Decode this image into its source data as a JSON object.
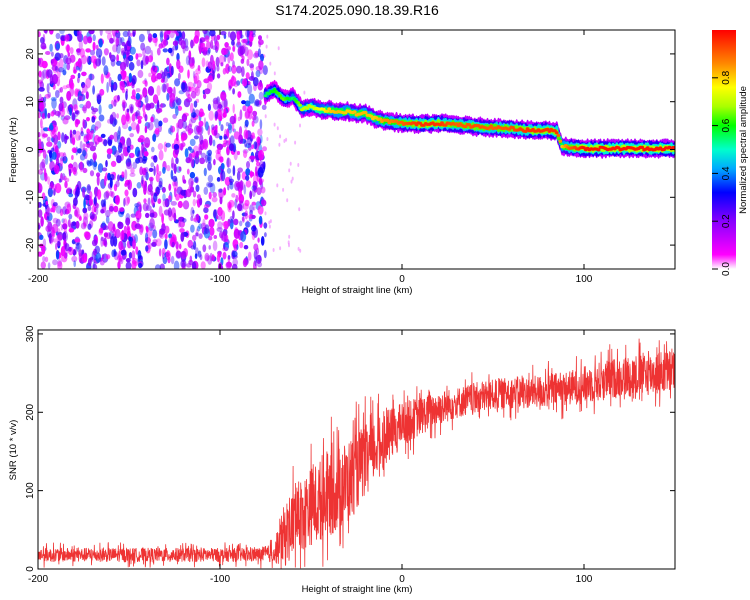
{
  "title": "S174.2025.090.18.39.R16",
  "chart_data": [
    {
      "type": "heatmap",
      "xlabel": "Height of straight line (km)",
      "ylabel": "Frequency (Hz)",
      "xlim": [
        -200,
        150
      ],
      "ylim": [
        -25,
        25
      ],
      "x_ticks": [
        "-200",
        "-100",
        "0",
        "100"
      ],
      "x_tick_values": [
        -200,
        -100,
        0,
        100
      ],
      "y_ticks": [
        "20",
        "10",
        "0",
        "-10",
        "-20"
      ],
      "y_tick_values": [
        20,
        10,
        0,
        -10,
        -20
      ],
      "colorbar": {
        "label": "Normalized spectral amplitude",
        "range": [
          0,
          1
        ],
        "ticks": [
          "0.0",
          "0.2",
          "0.4",
          "0.6",
          "0.8"
        ],
        "tick_values": [
          0.0,
          0.2,
          0.4,
          0.6,
          0.8
        ],
        "colors": [
          "#ffffff",
          "#ff00ff",
          "#8800ff",
          "#0000ff",
          "#00aaff",
          "#00ffcc",
          "#00ff00",
          "#aaff00",
          "#ffff00",
          "#ff8800",
          "#ff0000"
        ]
      },
      "noise_region_x": [
        -200,
        -75
      ],
      "ridge": {
        "x": [
          -75,
          -70,
          -65,
          -60,
          -55,
          -50,
          -45,
          -40,
          -35,
          -30,
          -25,
          -20,
          -15,
          -10,
          -5,
          0,
          10,
          20,
          30,
          40,
          50,
          60,
          70,
          80,
          85,
          88,
          92,
          100,
          110,
          120,
          130,
          140,
          150
        ],
        "freq": [
          11.5,
          12.5,
          10.5,
          11,
          8.5,
          9,
          8.2,
          8.3,
          7.8,
          8,
          7.5,
          7.5,
          6.5,
          6,
          5.8,
          5.5,
          5.3,
          5.5,
          5.2,
          4.8,
          4.6,
          4.4,
          4.0,
          4.0,
          3.8,
          0.8,
          0.5,
          0.2,
          0.2,
          0.2,
          0.2,
          0.2,
          0.2
        ],
        "amplitude": [
          0.55,
          0.6,
          0.65,
          0.55,
          0.7,
          0.7,
          0.75,
          0.8,
          0.82,
          0.8,
          0.82,
          0.82,
          0.8,
          0.85,
          0.87,
          0.9,
          0.95,
          0.95,
          0.9,
          0.92,
          0.9,
          0.92,
          0.95,
          0.95,
          0.95,
          0.8,
          0.9,
          0.98,
          0.98,
          0.98,
          0.98,
          0.98,
          0.98
        ]
      }
    },
    {
      "type": "line",
      "xlabel": "Height of straight line (km)",
      "ylabel": "SNR (10 * v/v)",
      "xlim": [
        -200,
        150
      ],
      "ylim": [
        0,
        305
      ],
      "x_ticks": [
        "-200",
        "-100",
        "0",
        "100"
      ],
      "x_tick_values": [
        -200,
        -100,
        0,
        100
      ],
      "y_ticks": [
        "300",
        "200",
        "100",
        "0"
      ],
      "y_tick_values": [
        300,
        200,
        100,
        0
      ],
      "color": "#ee3333",
      "series": [
        {
          "name": "SNR",
          "x": [
            -200,
            -150,
            -100,
            -80,
            -70,
            -65,
            -60,
            -50,
            -40,
            -30,
            -20,
            -10,
            0,
            10,
            20,
            30,
            40,
            50,
            60,
            70,
            80,
            90,
            100,
            110,
            120,
            130,
            140,
            150
          ],
          "mean": [
            18,
            18,
            18,
            18,
            20,
            40,
            60,
            80,
            95,
            110,
            140,
            165,
            185,
            195,
            205,
            212,
            218,
            222,
            225,
            225,
            228,
            230,
            235,
            240,
            245,
            248,
            250,
            252
          ],
          "spread": [
            9,
            9,
            9,
            9,
            12,
            40,
            45,
            50,
            55,
            55,
            45,
            35,
            28,
            25,
            22,
            20,
            20,
            20,
            20,
            20,
            22,
            22,
            24,
            26,
            26,
            28,
            28,
            28
          ]
        }
      ]
    }
  ]
}
